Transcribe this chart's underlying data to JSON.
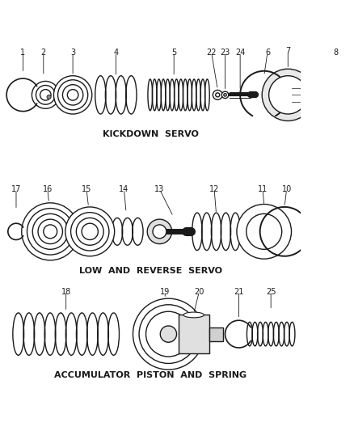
{
  "bg_color": "#ffffff",
  "line_color": "#1a1a1a",
  "section1_label": "KICKDOWN  SERVO",
  "section2_label": "LOW  AND  REVERSE  SERVO",
  "section3_label": "ACCUMULATOR  PISTON  AND  SPRING",
  "fig_w": 4.38,
  "fig_h": 5.33,
  "dpi": 100
}
